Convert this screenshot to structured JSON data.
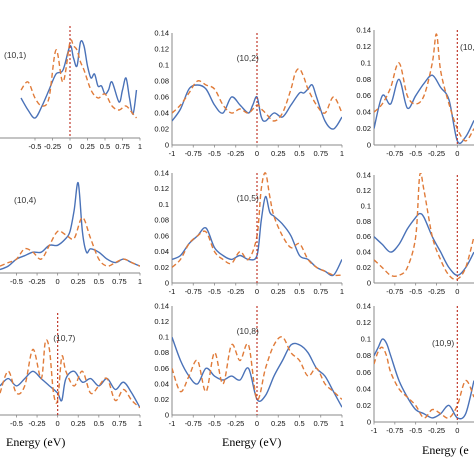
{
  "figure": {
    "x_titles": [
      "Energy (eV)",
      "Energy (eV)",
      "Energy (e"
    ]
  },
  "chart_data": [
    {
      "type": "line",
      "panel": "(10,1)",
      "xlim": [
        -1,
        1
      ],
      "ylim": [
        0,
        0.14
      ],
      "xticks": [
        "-0.5",
        "-0.25",
        "0",
        "0.25",
        "0.5",
        "0.75",
        "1"
      ],
      "yticks": [],
      "fermi_x": 0,
      "series": [
        {
          "color": "#4a72b8",
          "x": [
            -0.7,
            -0.6,
            -0.5,
            -0.4,
            -0.3,
            -0.2,
            -0.1,
            0,
            0.05,
            0.1,
            0.15,
            0.2,
            0.25,
            0.3,
            0.35,
            0.4,
            0.45,
            0.5,
            0.55,
            0.6,
            0.7,
            0.75,
            0.8,
            0.85,
            0.9,
            0.95
          ],
          "y": [
            0.05,
            0.035,
            0.025,
            0.04,
            0.06,
            0.08,
            0.085,
            0.115,
            0.1,
            0.09,
            0.12,
            0.115,
            0.09,
            0.075,
            0.08,
            0.065,
            0.065,
            0.055,
            0.06,
            0.07,
            0.045,
            0.06,
            0.075,
            0.05,
            0.03,
            0.06
          ]
        },
        {
          "color": "#e07b39",
          "dashed": true,
          "x": [
            -0.7,
            -0.6,
            -0.5,
            -0.4,
            -0.3,
            -0.2,
            -0.1,
            0,
            0.05,
            0.1,
            0.15,
            0.2,
            0.3,
            0.4,
            0.5,
            0.6,
            0.7,
            0.8,
            0.9,
            0.95
          ],
          "y": [
            0.06,
            0.07,
            0.05,
            0.04,
            0.05,
            0.11,
            0.07,
            0.12,
            0.115,
            0.11,
            0.095,
            0.085,
            0.06,
            0.05,
            0.055,
            0.04,
            0.035,
            0.04,
            0.03,
            0.025
          ]
        }
      ]
    },
    {
      "type": "line",
      "panel": "(10,2)",
      "xlim": [
        -1,
        1
      ],
      "ylim": [
        0,
        0.14
      ],
      "xticks": [
        "-1",
        "-0.75",
        "-0.5",
        "-0.25",
        "0",
        "0.25",
        "0.5",
        "0.75",
        "1"
      ],
      "yticks": [
        "0",
        "0.02",
        "0.04",
        "0.06",
        "0.08",
        "0.1",
        "0.12",
        "0.14"
      ],
      "fermi_x": 0,
      "series": [
        {
          "color": "#4a72b8",
          "x": [
            -1,
            -0.9,
            -0.8,
            -0.7,
            -0.6,
            -0.5,
            -0.4,
            -0.3,
            -0.2,
            -0.1,
            -0.05,
            0,
            0.05,
            0.1,
            0.2,
            0.3,
            0.4,
            0.5,
            0.55,
            0.6,
            0.65,
            0.7,
            0.8,
            0.9,
            1
          ],
          "y": [
            0.03,
            0.045,
            0.07,
            0.075,
            0.07,
            0.05,
            0.04,
            0.06,
            0.05,
            0.04,
            0.05,
            0.06,
            0.035,
            0.03,
            0.04,
            0.035,
            0.05,
            0.065,
            0.065,
            0.07,
            0.075,
            0.06,
            0.03,
            0.02,
            0.035
          ]
        },
        {
          "color": "#e07b39",
          "dashed": true,
          "x": [
            -1,
            -0.9,
            -0.8,
            -0.7,
            -0.6,
            -0.5,
            -0.4,
            -0.3,
            -0.2,
            -0.1,
            0,
            0.05,
            0.1,
            0.2,
            0.3,
            0.4,
            0.45,
            0.5,
            0.55,
            0.6,
            0.7,
            0.8,
            0.9,
            1
          ],
          "y": [
            0.04,
            0.05,
            0.065,
            0.08,
            0.075,
            0.07,
            0.05,
            0.04,
            0.045,
            0.04,
            0.05,
            0.045,
            0.04,
            0.03,
            0.04,
            0.07,
            0.09,
            0.095,
            0.085,
            0.07,
            0.05,
            0.04,
            0.06,
            0.04
          ]
        }
      ]
    },
    {
      "type": "line",
      "panel": "(10,",
      "xlim": [
        -1,
        0.2
      ],
      "ylim": [
        0,
        0.14
      ],
      "xticks": [
        "-0.75",
        "-0.5",
        "-0.25",
        "0"
      ],
      "yticks": [
        "0",
        "0.02",
        "0.04",
        "0.06",
        "0.08",
        "0.1",
        "0.12",
        "0.14"
      ],
      "fermi_x": 0,
      "series": [
        {
          "color": "#4a72b8",
          "x": [
            -1,
            -0.9,
            -0.8,
            -0.7,
            -0.6,
            -0.5,
            -0.4,
            -0.3,
            -0.2,
            -0.1,
            0,
            0.1,
            0.2
          ],
          "y": [
            0.02,
            0.06,
            0.05,
            0.08,
            0.045,
            0.06,
            0.075,
            0.085,
            0.07,
            0.055,
            0.005,
            0.01,
            0.03
          ]
        },
        {
          "color": "#e07b39",
          "dashed": true,
          "x": [
            -1,
            -0.9,
            -0.8,
            -0.7,
            -0.6,
            -0.5,
            -0.4,
            -0.3,
            -0.25,
            -0.2,
            -0.1,
            0,
            0.1,
            0.2
          ],
          "y": [
            0.04,
            0.05,
            0.07,
            0.1,
            0.06,
            0.05,
            0.06,
            0.1,
            0.135,
            0.09,
            0.05,
            0.02,
            0.005,
            0.02
          ]
        }
      ]
    },
    {
      "type": "line",
      "panel": "(10,4)",
      "xlim": [
        -0.7,
        1
      ],
      "ylim": [
        0,
        0.14
      ],
      "xticks": [
        "-0.5",
        "-0.25",
        "0",
        "0.25",
        "0.5",
        "0.75",
        "1"
      ],
      "yticks": [],
      "fermi_x": null,
      "series": [
        {
          "color": "#4a72b8",
          "x": [
            -0.7,
            -0.6,
            -0.5,
            -0.4,
            -0.3,
            -0.2,
            -0.1,
            0,
            0.1,
            0.15,
            0.2,
            0.25,
            0.3,
            0.35,
            0.4,
            0.5,
            0.6,
            0.7,
            0.8,
            0.9,
            1
          ],
          "y": [
            0.005,
            0.01,
            0.02,
            0.025,
            0.03,
            0.03,
            0.04,
            0.04,
            0.05,
            0.06,
            0.09,
            0.13,
            0.06,
            0.03,
            0.035,
            0.03,
            0.02,
            0.015,
            0.02,
            0.015,
            0.01
          ]
        },
        {
          "color": "#e07b39",
          "dashed": true,
          "x": [
            -0.7,
            -0.6,
            -0.5,
            -0.4,
            -0.3,
            -0.2,
            -0.1,
            0,
            0.1,
            0.2,
            0.3,
            0.4,
            0.5,
            0.6,
            0.7,
            0.8,
            0.9,
            1
          ],
          "y": [
            0.01,
            0.015,
            0.02,
            0.035,
            0.03,
            0.02,
            0.04,
            0.06,
            0.055,
            0.05,
            0.08,
            0.05,
            0.02,
            0.01,
            0.015,
            0.02,
            0.015,
            0.01
          ]
        }
      ]
    },
    {
      "type": "line",
      "panel": "(10,5)",
      "xlim": [
        -1,
        1
      ],
      "ylim": [
        0,
        0.14
      ],
      "xticks": [
        "-1",
        "-0.75",
        "-0.5",
        "-0.25",
        "0",
        "0.25",
        "0.5",
        "0.75",
        "1"
      ],
      "yticks": [
        "0",
        "0.02",
        "0.04",
        "0.06",
        "0.08",
        "0.1",
        "0.12",
        "0.14"
      ],
      "fermi_x": 0,
      "series": [
        {
          "color": "#4a72b8",
          "x": [
            -1,
            -0.9,
            -0.8,
            -0.7,
            -0.6,
            -0.5,
            -0.4,
            -0.3,
            -0.2,
            -0.1,
            0,
            0.05,
            0.1,
            0.15,
            0.2,
            0.3,
            0.4,
            0.5,
            0.6,
            0.7,
            0.8,
            0.9,
            1
          ],
          "y": [
            0.03,
            0.035,
            0.05,
            0.06,
            0.07,
            0.045,
            0.035,
            0.03,
            0.035,
            0.03,
            0.035,
            0.08,
            0.11,
            0.09,
            0.085,
            0.075,
            0.06,
            0.035,
            0.03,
            0.02,
            0.015,
            0.01,
            0.03
          ]
        },
        {
          "color": "#e07b39",
          "dashed": true,
          "x": [
            -1,
            -0.9,
            -0.8,
            -0.7,
            -0.6,
            -0.5,
            -0.4,
            -0.3,
            -0.2,
            -0.1,
            0,
            0.05,
            0.1,
            0.15,
            0.2,
            0.3,
            0.4,
            0.5,
            0.6,
            0.7,
            0.8,
            0.9,
            1
          ],
          "y": [
            0.02,
            0.03,
            0.05,
            0.06,
            0.065,
            0.04,
            0.03,
            0.025,
            0.04,
            0.03,
            0.06,
            0.12,
            0.14,
            0.11,
            0.085,
            0.06,
            0.045,
            0.05,
            0.03,
            0.02,
            0.015,
            0.01,
            0.01
          ]
        }
      ]
    },
    {
      "type": "line",
      "panel": "",
      "xlim": [
        -1,
        0.2
      ],
      "ylim": [
        0,
        0.14
      ],
      "xticks": [
        "-0.75",
        "-0.5",
        "-0.25",
        "0"
      ],
      "yticks": [
        "0",
        "0.02",
        "0.04",
        "0.06",
        "0.08",
        "0.1",
        "0.12",
        "0.14"
      ],
      "fermi_x": 0,
      "series": [
        {
          "color": "#4a72b8",
          "x": [
            -1,
            -0.9,
            -0.8,
            -0.7,
            -0.6,
            -0.5,
            -0.45,
            -0.4,
            -0.3,
            -0.2,
            -0.1,
            0,
            0.1,
            0.2
          ],
          "y": [
            0.06,
            0.05,
            0.04,
            0.05,
            0.07,
            0.085,
            0.09,
            0.085,
            0.06,
            0.04,
            0.02,
            0.01,
            0.02,
            0.04
          ]
        },
        {
          "color": "#e07b39",
          "dashed": true,
          "x": [
            -1,
            -0.9,
            -0.8,
            -0.7,
            -0.6,
            -0.5,
            -0.45,
            -0.4,
            -0.3,
            -0.2,
            -0.1,
            0,
            0.1,
            0.2
          ],
          "y": [
            0.03,
            0.02,
            0.01,
            0.01,
            0.02,
            0.06,
            0.14,
            0.12,
            0.06,
            0.03,
            0.01,
            0.005,
            0.02,
            0.06
          ]
        }
      ]
    },
    {
      "type": "line",
      "panel": "(10,7)",
      "xlim": [
        -0.7,
        1
      ],
      "ylim": [
        0,
        0.14
      ],
      "xticks": [
        "-0.5",
        "-0.25",
        "0",
        "0.25",
        "0.5",
        "0.75",
        "1"
      ],
      "yticks": [],
      "fermi_x": 0,
      "series": [
        {
          "color": "#4a72b8",
          "x": [
            -0.7,
            -0.6,
            -0.5,
            -0.4,
            -0.3,
            -0.2,
            -0.1,
            0,
            0.05,
            0.1,
            0.2,
            0.3,
            0.4,
            0.5,
            0.6,
            0.7,
            0.8,
            0.9,
            1
          ],
          "y": [
            0.04,
            0.05,
            0.04,
            0.05,
            0.06,
            0.05,
            0.04,
            0.03,
            0.02,
            0.05,
            0.06,
            0.045,
            0.05,
            0.04,
            0.05,
            0.035,
            0.045,
            0.03,
            0.01
          ]
        },
        {
          "color": "#e07b39",
          "dashed": true,
          "x": [
            -0.7,
            -0.6,
            -0.5,
            -0.4,
            -0.3,
            -0.2,
            -0.15,
            -0.1,
            -0.05,
            0,
            0.05,
            0.1,
            0.2,
            0.3,
            0.4,
            0.5,
            0.6,
            0.7,
            0.8,
            0.9,
            1
          ],
          "y": [
            0.03,
            0.06,
            0.03,
            0.04,
            0.09,
            0.05,
            0.1,
            0.09,
            0.03,
            0.02,
            0.08,
            0.06,
            0.04,
            0.06,
            0.03,
            0.04,
            0.05,
            0.02,
            0.035,
            0.02,
            0.01
          ]
        }
      ]
    },
    {
      "type": "line",
      "panel": "(10,8)",
      "xlim": [
        -1,
        1
      ],
      "ylim": [
        0,
        0.14
      ],
      "xticks": [
        "-1",
        "-0.75",
        "-0.5",
        "-0.25",
        "0",
        "0.25",
        "0.5",
        "0.75",
        "1"
      ],
      "yticks": [
        "0",
        "0.02",
        "0.04",
        "0.06",
        "0.08",
        "0.1",
        "0.12",
        "0.14"
      ],
      "fermi_x": 0,
      "series": [
        {
          "color": "#4a72b8",
          "x": [
            -1,
            -0.9,
            -0.8,
            -0.7,
            -0.6,
            -0.5,
            -0.4,
            -0.3,
            -0.2,
            -0.1,
            0,
            0.1,
            0.2,
            0.3,
            0.4,
            0.5,
            0.6,
            0.7,
            0.8,
            0.9,
            1
          ],
          "y": [
            0.1,
            0.07,
            0.05,
            0.04,
            0.06,
            0.05,
            0.045,
            0.05,
            0.045,
            0.06,
            0.02,
            0.025,
            0.05,
            0.07,
            0.09,
            0.09,
            0.08,
            0.06,
            0.05,
            0.03,
            0.01
          ]
        },
        {
          "color": "#e07b39",
          "dashed": true,
          "x": [
            -1,
            -0.9,
            -0.8,
            -0.7,
            -0.6,
            -0.5,
            -0.4,
            -0.3,
            -0.2,
            -0.1,
            0,
            0.1,
            0.2,
            0.3,
            0.4,
            0.5,
            0.6,
            0.7,
            0.8,
            0.9,
            1
          ],
          "y": [
            0.06,
            0.03,
            0.05,
            0.07,
            0.03,
            0.08,
            0.04,
            0.09,
            0.07,
            0.09,
            0.02,
            0.06,
            0.09,
            0.1,
            0.08,
            0.07,
            0.05,
            0.06,
            0.04,
            0.03,
            0.02
          ]
        }
      ]
    },
    {
      "type": "line",
      "panel": "(10,9)",
      "xlim": [
        -1,
        0.2
      ],
      "ylim": [
        0,
        0.14
      ],
      "xticks": [
        "-1",
        "-0.75",
        "-0.5",
        "-0.25",
        "0"
      ],
      "yticks": [
        "0",
        "0.02",
        "0.04",
        "0.06",
        "0.08",
        "0.1",
        "0.12",
        "0.14"
      ],
      "fermi_x": 0,
      "series": [
        {
          "color": "#4a72b8",
          "x": [
            -1,
            -0.95,
            -0.9,
            -0.85,
            -0.8,
            -0.7,
            -0.6,
            -0.5,
            -0.4,
            -0.3,
            -0.2,
            -0.1,
            0,
            0.1,
            0.2
          ],
          "y": [
            0.08,
            0.09,
            0.1,
            0.095,
            0.08,
            0.05,
            0.03,
            0.015,
            0.01,
            0.005,
            0.01,
            0.02,
            0.005,
            0.01,
            0.05
          ]
        },
        {
          "color": "#e07b39",
          "dashed": true,
          "x": [
            -1,
            -0.95,
            -0.9,
            -0.85,
            -0.8,
            -0.7,
            -0.6,
            -0.5,
            -0.4,
            -0.3,
            -0.2,
            -0.1,
            0,
            0.1,
            0.2
          ],
          "y": [
            0.07,
            0.085,
            0.09,
            0.08,
            0.06,
            0.04,
            0.03,
            0.02,
            0.005,
            0.015,
            0.01,
            0.005,
            0.02,
            0.05,
            0.03
          ]
        }
      ]
    }
  ]
}
